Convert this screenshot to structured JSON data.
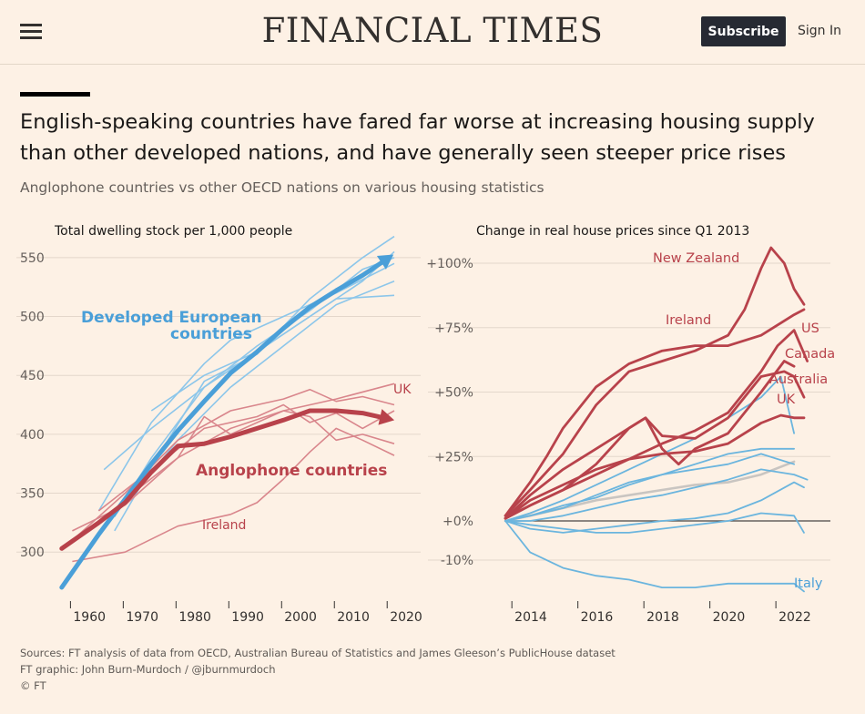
{
  "header": {
    "brand": "FINANCIAL TIMES",
    "subscribe_label": "Subscribe",
    "signin_label": "Sign In",
    "menu_icon": "hamburger-menu-icon"
  },
  "headline": "English-speaking countries have fared far worse at increasing housing supply than other developed nations, and have generally seen steeper price rises",
  "subheadline": "Anglophone countries vs other OECD nations on various housing statistics",
  "colors": {
    "european": "#4a9fd8",
    "european_light": "#8cc6ea",
    "anglophone": "#b8424b",
    "anglophone_light": "#d9868c",
    "other_oecd": "#6bb5de",
    "grey": "#c9c5c1",
    "axis": "#33302e",
    "grid": "#e4d7cb"
  },
  "chart_data": [
    {
      "type": "line",
      "title": "Total dwelling stock per 1,000 people",
      "xlim": [
        1957,
        2026
      ],
      "ylim": [
        270,
        570
      ],
      "x_ticks": [
        1960,
        1970,
        1980,
        1990,
        2000,
        2010,
        2020
      ],
      "x_tick_labels": [
        "1960",
        "1970",
        "1980",
        "1990",
        "2000",
        "2010",
        "2020"
      ],
      "y_ticks": [
        300,
        350,
        400,
        450,
        500,
        550
      ],
      "y_tick_labels": [
        "300",
        "350",
        "400",
        "450",
        "500",
        "550"
      ],
      "annotations": [
        {
          "text": "Developed European",
          "series": "european"
        },
        {
          "text": "countries",
          "series": "european"
        },
        {
          "text": "Anglophone countries",
          "series": "anglophone"
        },
        {
          "text": "UK",
          "series": "anglophone"
        },
        {
          "text": "Ireland",
          "series": "anglophone"
        }
      ],
      "series": [
        {
          "group": "european",
          "role": "average",
          "x": [
            1958,
            1965,
            1970,
            1975,
            1980,
            1985,
            1990,
            1995,
            2000,
            2005,
            2010,
            2015,
            2020
          ],
          "y": [
            270,
            315,
            345,
            375,
            403,
            428,
            452,
            470,
            490,
            508,
            522,
            535,
            550
          ]
        },
        {
          "group": "anglophone",
          "role": "average",
          "x": [
            1958,
            1965,
            1970,
            1975,
            1980,
            1985,
            1990,
            1995,
            2000,
            2005,
            2010,
            2015,
            2020
          ],
          "y": [
            303,
            325,
            342,
            368,
            390,
            392,
            398,
            405,
            412,
            420,
            420,
            418,
            413
          ]
        },
        {
          "group": "european",
          "role": "country",
          "x": [
            1966,
            1975,
            1985,
            1995,
            2005,
            2015,
            2021
          ],
          "y": [
            370,
            405,
            440,
            470,
            500,
            530,
            555
          ]
        },
        {
          "group": "european",
          "role": "country",
          "x": [
            1968,
            1975,
            1985,
            1995,
            2005,
            2015,
            2021
          ],
          "y": [
            330,
            380,
            440,
            475,
            505,
            540,
            550
          ]
        },
        {
          "group": "european",
          "role": "country",
          "x": [
            1968,
            1975,
            1985,
            1995,
            2005,
            2015,
            2021
          ],
          "y": [
            318,
            372,
            445,
            468,
            515,
            550,
            568
          ]
        },
        {
          "group": "european",
          "role": "country",
          "x": [
            1970,
            1980,
            1990,
            2000,
            2010,
            2021
          ],
          "y": [
            340,
            395,
            440,
            475,
            510,
            530
          ]
        },
        {
          "group": "european",
          "role": "country",
          "x": [
            1965,
            1975,
            1985,
            1990,
            2000,
            2010,
            2021
          ],
          "y": [
            335,
            410,
            460,
            480,
            500,
            520,
            545
          ]
        },
        {
          "group": "european",
          "role": "country",
          "x": [
            1975,
            1985,
            1995,
            2005,
            2010,
            2021
          ],
          "y": [
            420,
            450,
            470,
            500,
            515,
            518
          ]
        },
        {
          "group": "anglophone",
          "role": "country",
          "name": "UK",
          "x": [
            1960,
            1970,
            1980,
            1990,
            2000,
            2010,
            2021
          ],
          "y": [
            318,
            340,
            380,
            405,
            420,
            430,
            443
          ]
        },
        {
          "group": "anglophone",
          "role": "country",
          "x": [
            1960,
            1970,
            1980,
            1990,
            2000,
            2005,
            2010,
            2015,
            2021
          ],
          "y": [
            310,
            350,
            395,
            420,
            430,
            438,
            428,
            432,
            425
          ]
        },
        {
          "group": "anglophone",
          "role": "country",
          "x": [
            1965,
            1975,
            1985,
            1995,
            2000,
            2005,
            2010,
            2015,
            2021
          ],
          "y": [
            335,
            370,
            405,
            415,
            425,
            410,
            418,
            405,
            420
          ]
        },
        {
          "group": "anglophone",
          "role": "country",
          "x": [
            1970,
            1980,
            1985,
            1990,
            2000,
            2005,
            2010,
            2015,
            2021
          ],
          "y": [
            345,
            380,
            415,
            400,
            420,
            415,
            395,
            400,
            392
          ]
        },
        {
          "group": "anglophone",
          "role": "country",
          "name": "Ireland",
          "x": [
            1960,
            1970,
            1980,
            1990,
            1995,
            2000,
            2005,
            2010,
            2015,
            2021
          ],
          "y": [
            292,
            300,
            322,
            332,
            342,
            362,
            385,
            405,
            395,
            382
          ]
        }
      ]
    },
    {
      "type": "line",
      "title": "Change in real house prices since Q1 2013",
      "xlim": [
        2012.9,
        2023.3
      ],
      "ylim": [
        -18,
        108
      ],
      "x_ticks": [
        2014,
        2016,
        2018,
        2020,
        2022
      ],
      "x_tick_labels": [
        "2014",
        "2016",
        "2018",
        "2020",
        "2022"
      ],
      "y_ticks": [
        -10,
        0,
        25,
        50,
        75,
        100
      ],
      "y_tick_labels": [
        "-10%",
        "+0%",
        "+25%",
        "+50%",
        "+75%",
        "+100%"
      ],
      "series": [
        {
          "group": "anglophone",
          "name": "New Zealand",
          "x": [
            2013.25,
            2014,
            2015,
            2016,
            2017,
            2018,
            2019,
            2020,
            2020.5,
            2021,
            2021.3,
            2021.7,
            2022,
            2022.3
          ],
          "y": [
            2,
            12,
            26,
            45,
            58,
            62,
            66,
            72,
            82,
            98,
            106,
            100,
            90,
            84
          ]
        },
        {
          "group": "anglophone",
          "name": "Ireland",
          "x": [
            2013.25,
            2014,
            2014.5,
            2015,
            2016,
            2017,
            2018,
            2019,
            2020,
            2021,
            2022,
            2022.3
          ],
          "y": [
            2,
            15,
            25,
            36,
            52,
            61,
            66,
            68,
            68,
            72,
            80,
            82
          ]
        },
        {
          "group": "anglophone",
          "name": "US",
          "x": [
            2013.25,
            2014,
            2015,
            2016,
            2017,
            2018,
            2019,
            2020,
            2021,
            2021.5,
            2022,
            2022.4
          ],
          "y": [
            1,
            6,
            12,
            18,
            24,
            30,
            35,
            42,
            58,
            68,
            74,
            62
          ]
        },
        {
          "group": "anglophone",
          "name": "Canada",
          "x": [
            2013.25,
            2014,
            2015,
            2016,
            2017,
            2017.5,
            2018,
            2019,
            2020,
            2021,
            2021.7,
            2022,
            2022.3
          ],
          "y": [
            1,
            6,
            12,
            22,
            36,
            40,
            33,
            32,
            40,
            56,
            58,
            56,
            48
          ]
        },
        {
          "group": "anglophone",
          "name": "Australia",
          "x": [
            2013.25,
            2014,
            2015,
            2016,
            2017,
            2017.5,
            2018,
            2018.5,
            2019,
            2020,
            2021,
            2021.7,
            2022
          ],
          "y": [
            1,
            10,
            20,
            28,
            36,
            40,
            28,
            22,
            28,
            34,
            50,
            62,
            60
          ]
        },
        {
          "group": "anglophone",
          "name": "UK",
          "x": [
            2013.25,
            2014,
            2015,
            2016,
            2017,
            2018,
            2019,
            2020,
            2021,
            2021.6,
            2022,
            2022.3
          ],
          "y": [
            1,
            8,
            14,
            20,
            24,
            26,
            27,
            30,
            38,
            41,
            40,
            40
          ]
        },
        {
          "group": "other",
          "x": [
            2013.25,
            2014,
            2015,
            2016,
            2017,
            2018,
            2019,
            2020,
            2021,
            2021.6,
            2022
          ],
          "y": [
            0,
            3,
            8,
            14,
            20,
            26,
            32,
            40,
            48,
            56,
            34
          ]
        },
        {
          "group": "other",
          "x": [
            2013.25,
            2014,
            2015,
            2016,
            2017,
            2018,
            2019,
            2020,
            2021,
            2022
          ],
          "y": [
            0,
            2,
            5,
            10,
            15,
            18,
            22,
            26,
            28,
            28
          ]
        },
        {
          "group": "other",
          "x": [
            2013.25,
            2014,
            2015,
            2016,
            2017,
            2018,
            2019,
            2020,
            2021,
            2022,
            2022.4
          ],
          "y": [
            0,
            0,
            2,
            5,
            8,
            10,
            13,
            16,
            20,
            18,
            16
          ]
        },
        {
          "group": "other",
          "x": [
            2013.25,
            2014,
            2015,
            2016,
            2017,
            2018,
            2019,
            2020,
            2021,
            2022
          ],
          "y": [
            0,
            2,
            6,
            9,
            14,
            18,
            20,
            22,
            26,
            22
          ]
        },
        {
          "group": "other",
          "x": [
            2013.25,
            2014,
            2015,
            2016,
            2017,
            2018,
            2019,
            2020,
            2021,
            2022,
            2022.3
          ],
          "y": [
            0,
            -2,
            -3,
            -2,
            -1,
            0,
            1,
            3,
            8,
            15,
            13
          ]
        },
        {
          "group": "other",
          "x": [
            2013.25,
            2014,
            2015,
            2016,
            2017,
            2018,
            2019,
            2020,
            2021,
            2022,
            2022.3
          ],
          "y": [
            0,
            -1,
            -2,
            -3,
            -3,
            -2,
            -1,
            0,
            3,
            2,
            -3
          ]
        },
        {
          "group": "other",
          "name": "Italy",
          "x": [
            2013.25,
            2014,
            2015,
            2016,
            2017,
            2018,
            2019,
            2020,
            2021,
            2022,
            2022.3
          ],
          "y": [
            0,
            -8,
            -12,
            -14,
            -15,
            -17,
            -17,
            -16,
            -16,
            -16,
            -18
          ]
        },
        {
          "group": "grey",
          "x": [
            2013.25,
            2014,
            2015,
            2016,
            2017,
            2018,
            2019,
            2020,
            2021,
            2022
          ],
          "y": [
            0,
            2,
            5,
            8,
            10,
            12,
            14,
            15,
            18,
            23
          ]
        }
      ]
    }
  ],
  "footer": {
    "sources": "Sources: FT analysis of data from OECD, Australian Bureau of Statistics and James Gleeson’s PublicHouse dataset",
    "credit": "FT graphic: John Burn-Murdoch / @jburnmurdoch",
    "copyright": "© FT"
  }
}
